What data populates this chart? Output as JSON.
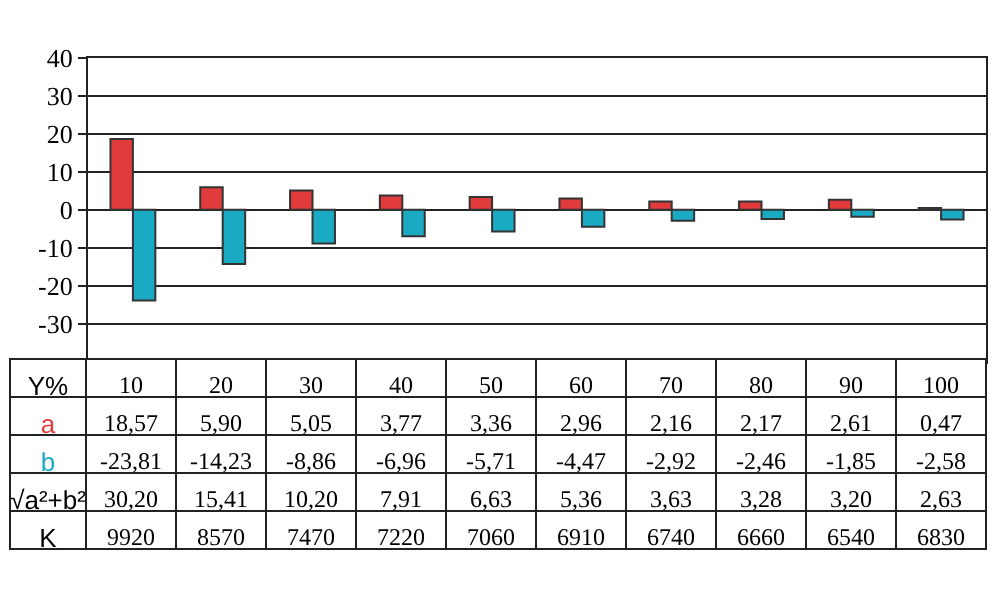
{
  "chart_data": {
    "type": "bar",
    "xlabel": "Y%",
    "categories": [
      "10",
      "20",
      "30",
      "40",
      "50",
      "60",
      "70",
      "80",
      "90",
      "100"
    ],
    "series": [
      {
        "name": "a",
        "color": "#e23b3b",
        "values": [
          18.57,
          5.9,
          5.05,
          3.77,
          3.36,
          2.96,
          2.16,
          2.17,
          2.61,
          0.47
        ],
        "value_labels": [
          "18,57",
          "5,90",
          "5,05",
          "3,77",
          "3,36",
          "2,96",
          "2,16",
          "2,17",
          "2,61",
          "0,47"
        ]
      },
      {
        "name": "b",
        "color": "#1aaac4",
        "values": [
          -23.81,
          -14.23,
          -8.86,
          -6.96,
          -5.71,
          -4.47,
          -2.92,
          -2.46,
          -1.85,
          -2.58
        ],
        "value_labels": [
          "-23,81",
          "-14,23",
          "-8,86",
          "-6,96",
          "-5,71",
          "-4,47",
          "-2,92",
          "-2,46",
          "-1,85",
          "-2,58"
        ]
      }
    ],
    "annotations": [
      "√a²+b²",
      "30,20",
      "15,41",
      "10,20",
      "7,91",
      "6,63",
      "5,36",
      "3,63",
      "3,28",
      "3,20",
      "2,63",
      "K",
      "9920",
      "8570",
      "7470",
      "7220",
      "7060",
      "6910",
      "6740",
      "6660",
      "6540",
      "6830"
    ],
    "ylim": [
      -40,
      40
    ],
    "yticks": [
      40,
      30,
      20,
      10,
      0,
      -10,
      -20,
      -30
    ],
    "grid": "y",
    "tick_labels": "y"
  }
}
